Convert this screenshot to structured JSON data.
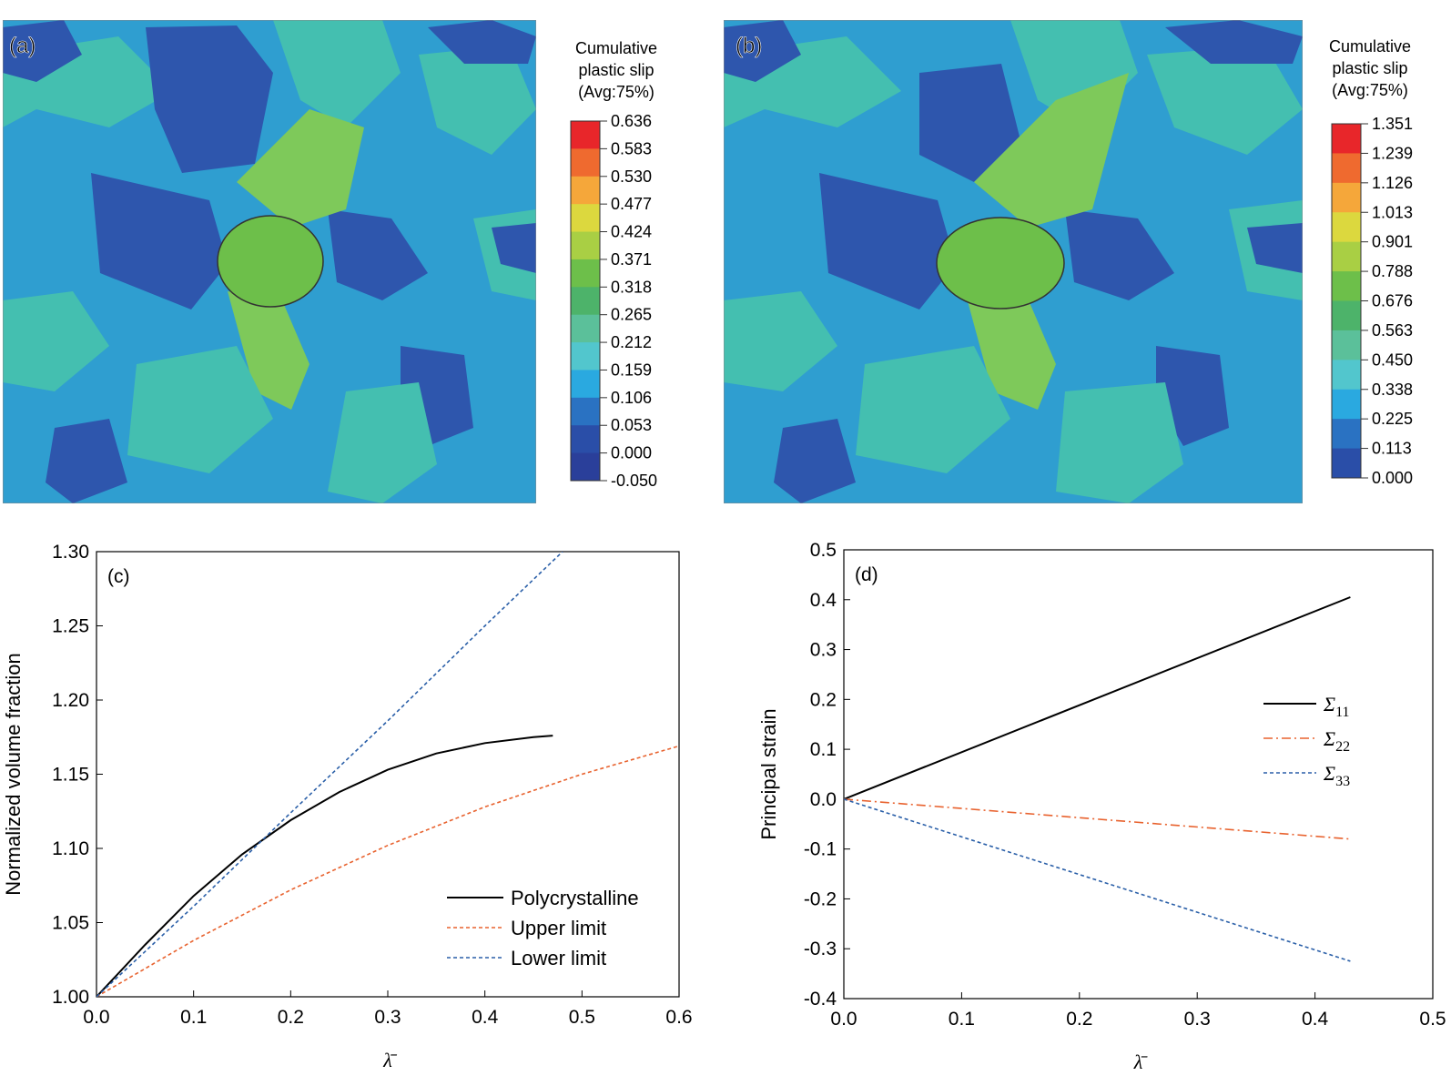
{
  "panel_a": {
    "label": "(a)",
    "legend_title": [
      "Cumulative",
      "plastic slip",
      "(Avg:75%)"
    ],
    "legend_values": [
      "0.636",
      "0.583",
      "0.530",
      "0.477",
      "0.424",
      "0.371",
      "0.318",
      "0.265",
      "0.212",
      "0.159",
      "0.106",
      "0.053",
      "0.000",
      "-0.050"
    ]
  },
  "panel_b": {
    "label": "(b)",
    "legend_title": [
      "Cumulative",
      "plastic slip",
      "(Avg:75%)"
    ],
    "legend_values": [
      "1.351",
      "1.239",
      "1.126",
      "1.013",
      "0.901",
      "0.788",
      "0.676",
      "0.563",
      "0.450",
      "0.338",
      "0.225",
      "0.113",
      "0.000"
    ]
  },
  "colormap": [
    "#e8262a",
    "#ef6a2f",
    "#f5a73a",
    "#dcd83e",
    "#a9cf44",
    "#6dbf4a",
    "#4db36a",
    "#5bc09a",
    "#52c6cd",
    "#2aa9e0",
    "#2a72c2",
    "#2a4ea8",
    "#2a3f9a"
  ],
  "field_colors": {
    "base": "#2f9ed0",
    "dark": "#2e56ad",
    "light": "#44bfb0",
    "green": "#7ec95a",
    "hole": "#6dbf4a"
  },
  "chart_data": [
    {
      "type": "line",
      "panel_label": "(c)",
      "xlabel": "λ̄",
      "ylabel": "Normalized volume fraction",
      "xlim": [
        0,
        0.6
      ],
      "ylim": [
        1.0,
        1.3
      ],
      "xticks": [
        "0.0",
        "0.1",
        "0.2",
        "0.3",
        "0.4",
        "0.5",
        "0.6"
      ],
      "yticks": [
        "1.00",
        "1.05",
        "1.10",
        "1.15",
        "1.20",
        "1.25",
        "1.30"
      ],
      "legend_position": "lower-right",
      "series": [
        {
          "name": "Polycrystalline",
          "color": "#000000",
          "dash": "solid",
          "x": [
            0,
            0.05,
            0.1,
            0.15,
            0.2,
            0.25,
            0.3,
            0.35,
            0.4,
            0.45,
            0.47
          ],
          "y": [
            1.0,
            1.035,
            1.068,
            1.096,
            1.119,
            1.138,
            1.153,
            1.164,
            1.171,
            1.175,
            1.176
          ]
        },
        {
          "name": "Upper limit",
          "color": "#e8622e",
          "dash": "dotted",
          "x": [
            0,
            0.1,
            0.2,
            0.3,
            0.4,
            0.5,
            0.6
          ],
          "y": [
            1.0,
            1.038,
            1.072,
            1.102,
            1.128,
            1.15,
            1.169
          ]
        },
        {
          "name": "Lower limit",
          "color": "#2a5fa8",
          "dash": "dotted",
          "x": [
            0,
            0.1,
            0.2,
            0.3,
            0.4,
            0.48
          ],
          "y": [
            1.0,
            1.061,
            1.124,
            1.186,
            1.25,
            1.3
          ]
        }
      ]
    },
    {
      "type": "line",
      "panel_label": "(d)",
      "xlabel": "λ̄",
      "ylabel": "Principal strain",
      "xlim": [
        0,
        0.5
      ],
      "ylim": [
        -0.4,
        0.5
      ],
      "xticks": [
        "0.0",
        "0.1",
        "0.2",
        "0.3",
        "0.4",
        "0.5"
      ],
      "yticks": [
        "-0.4",
        "-0.3",
        "-0.2",
        "-0.1",
        "0.0",
        "0.1",
        "0.2",
        "0.3",
        "0.4",
        "0.5"
      ],
      "legend_position": "right",
      "series": [
        {
          "name": "Σ",
          "sub": "11",
          "color": "#000000",
          "dash": "solid",
          "x": [
            0,
            0.43
          ],
          "y": [
            0,
            0.405
          ]
        },
        {
          "name": "Σ",
          "sub": "22",
          "color": "#e8622e",
          "dash": "dashdot",
          "x": [
            0,
            0.43
          ],
          "y": [
            0,
            -0.08
          ]
        },
        {
          "name": "Σ",
          "sub": "33",
          "color": "#2a5fa8",
          "dash": "dotted",
          "x": [
            0,
            0.43
          ],
          "y": [
            0,
            -0.325
          ]
        }
      ]
    }
  ]
}
